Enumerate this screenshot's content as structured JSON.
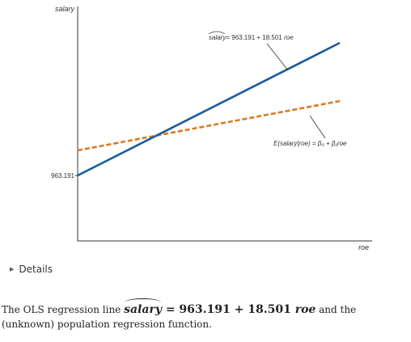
{
  "chart_data": {
    "type": "line",
    "ylabel": "salary",
    "xlabel": "roe",
    "y_tick_labels": [
      "963.191"
    ],
    "series": [
      {
        "kind": "ols-line",
        "style": "solid",
        "color": "#1a5b9c",
        "intercept": 963.191,
        "slope": 18.501,
        "annotation": {
          "lhs": "salary",
          "rhs": "= 963.191 + 18.501 ",
          "var": "roe"
        }
      },
      {
        "kind": "population-regression-function",
        "style": "dashed",
        "color": "#d97a1e",
        "annotation": {
          "text": "E(salary|roe) = β₀ + β₁roe"
        }
      }
    ]
  },
  "details": {
    "label": "Details"
  },
  "caption": {
    "before": "The OLS regression line ",
    "eq_lhs": "salary",
    "eq_rhs": " = 963.191 + 18.501 ",
    "eq_var": "roe",
    "after": " and the (unknown) population regression function."
  }
}
